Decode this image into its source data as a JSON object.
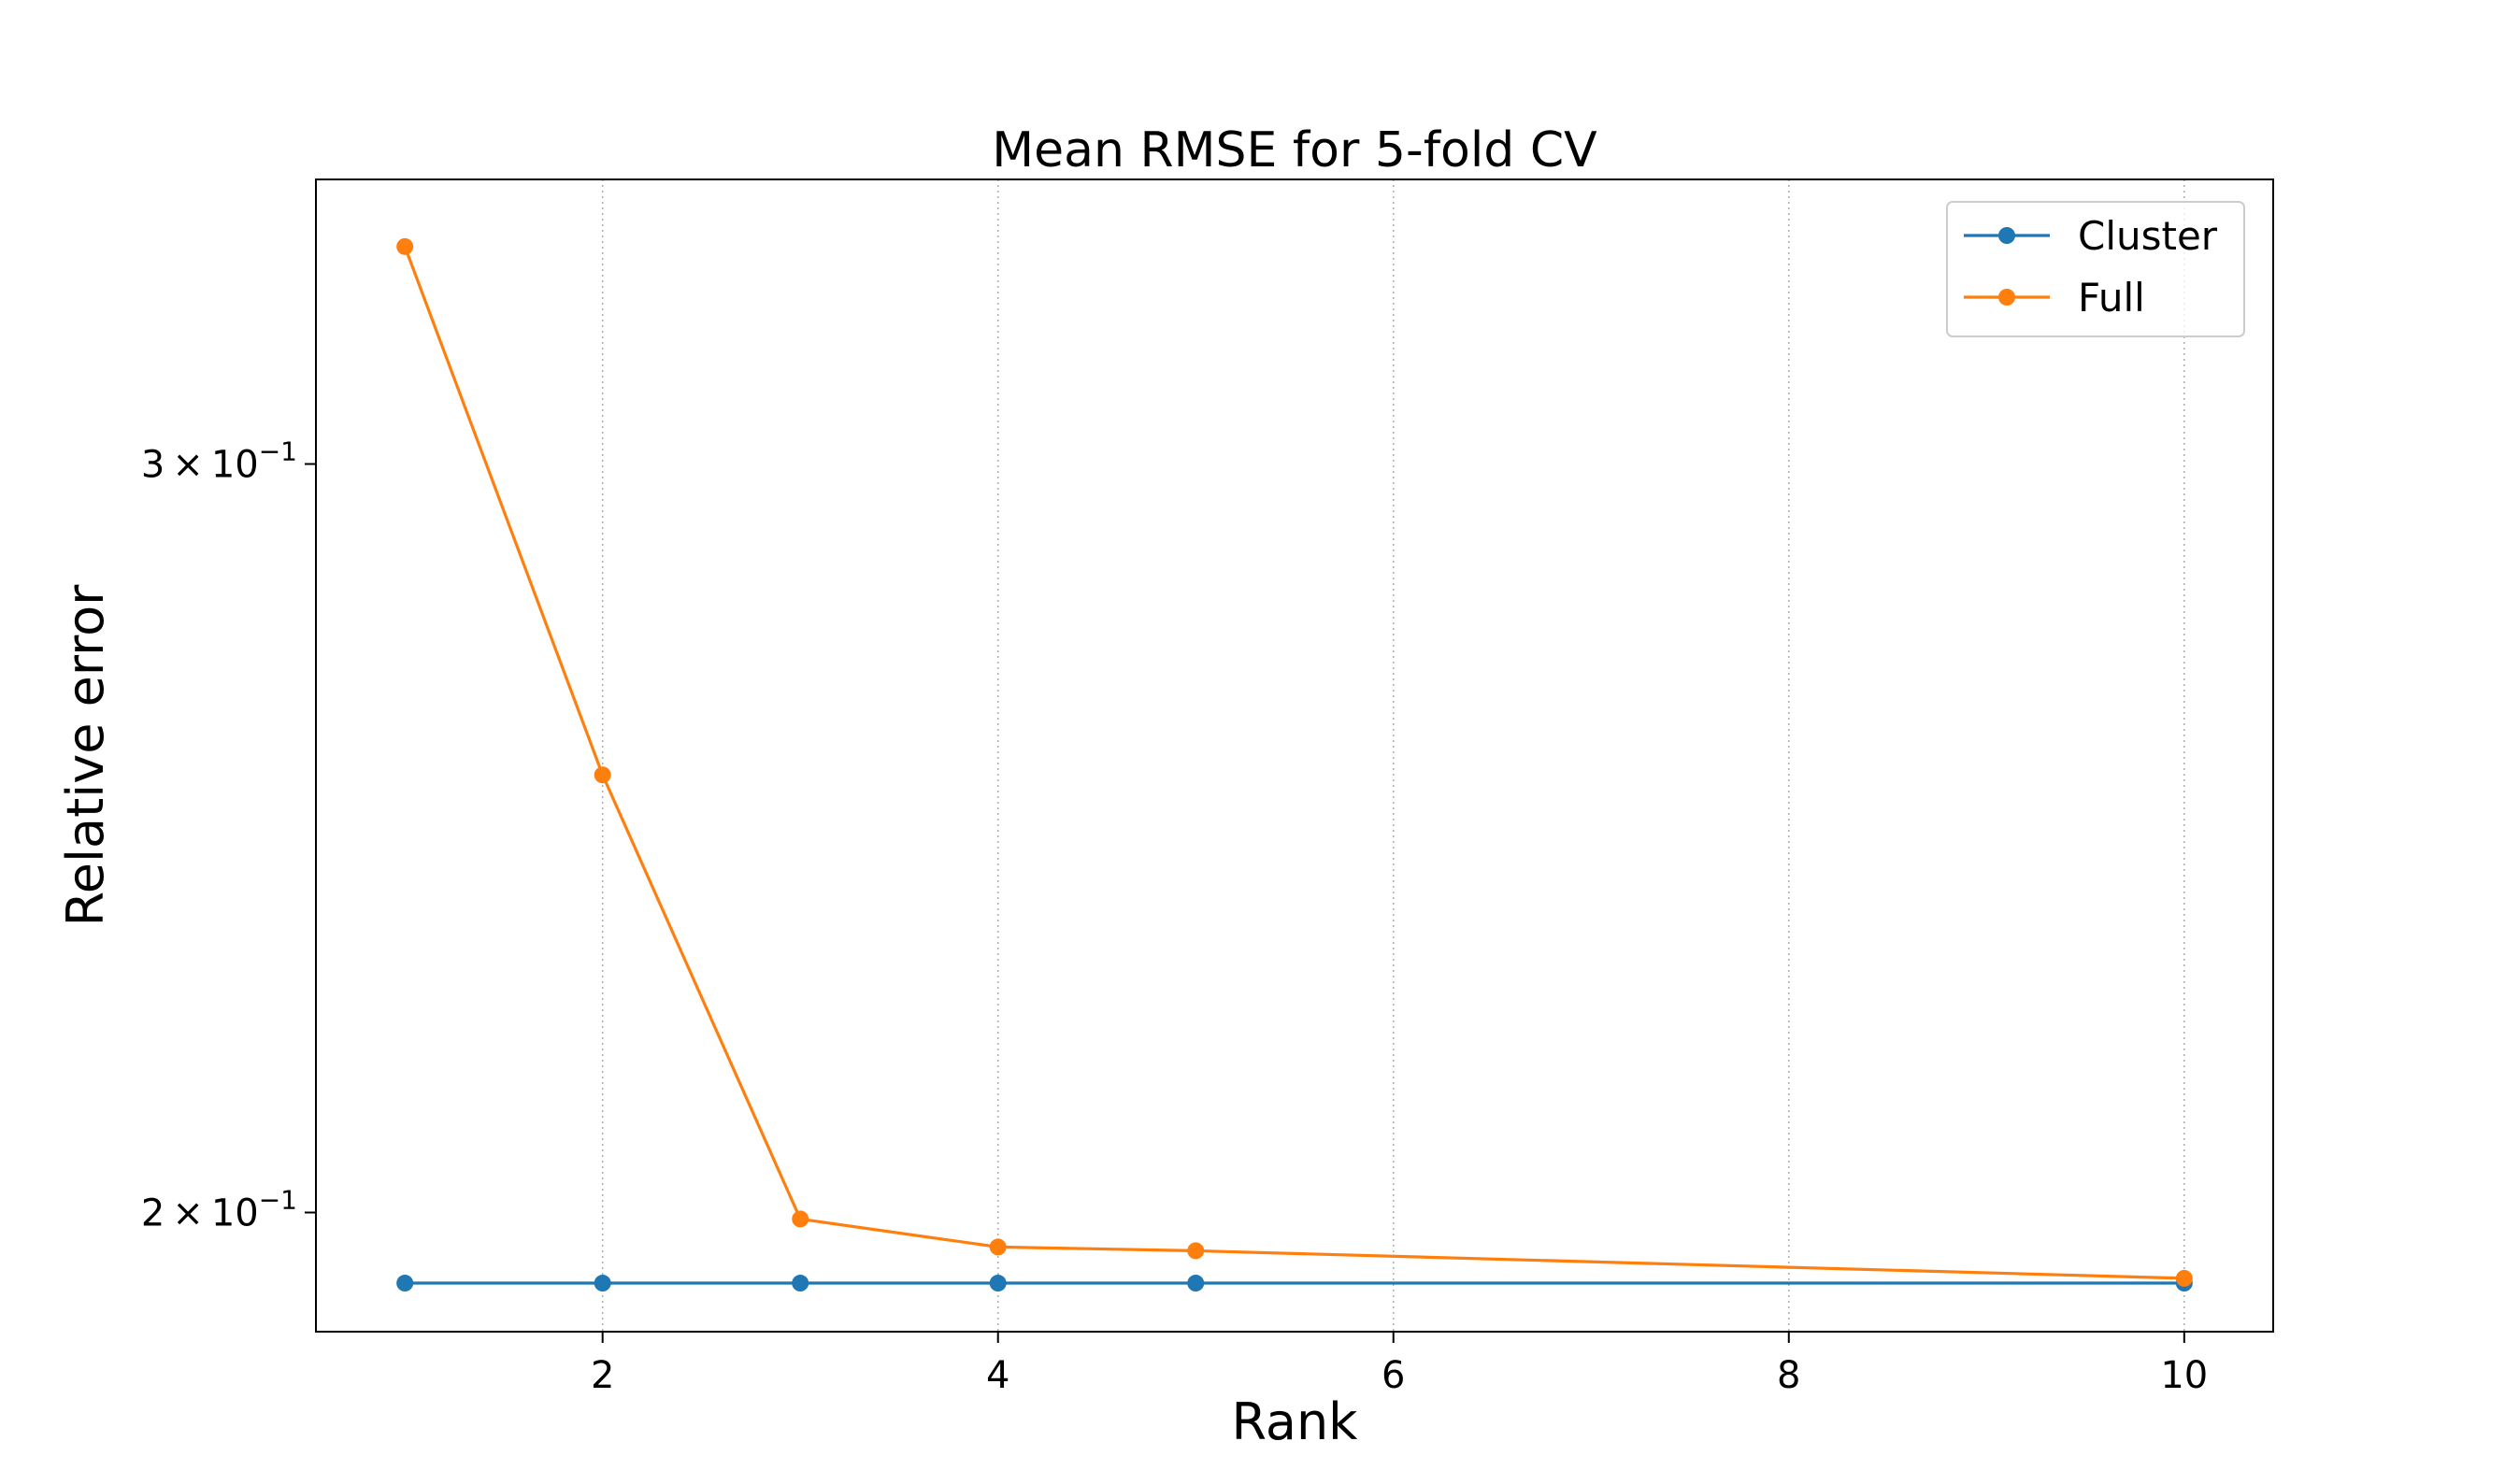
{
  "chart_data": {
    "type": "line",
    "title": "Mean RMSE for 5-fold CV",
    "xlabel": "Rank",
    "ylabel": "Relative error",
    "xlim": [
      0.55,
      10.45
    ],
    "ylim": [
      0.1875,
      0.35
    ],
    "yscale": "log",
    "xticks": [
      2,
      4,
      6,
      8,
      10
    ],
    "yticks": [
      {
        "value": 0.2,
        "mantissa": "2",
        "base": "10",
        "exp": "−1"
      },
      {
        "value": 0.3,
        "mantissa": "3",
        "base": "10",
        "exp": "−1"
      }
    ],
    "grid": "x-only, dotted",
    "legend_position": "top-right",
    "series": [
      {
        "name": "Cluster",
        "color": "#1f77b4",
        "x": [
          1,
          2,
          3,
          4,
          5,
          10
        ],
        "y": [
          0.1925,
          0.1925,
          0.1925,
          0.1925,
          0.1925,
          0.1925
        ]
      },
      {
        "name": "Full",
        "color": "#ff7f0e",
        "x": [
          1,
          2,
          3,
          4,
          5,
          10
        ],
        "y": [
          0.3375,
          0.2535,
          0.1993,
          0.1963,
          0.1959,
          0.193
        ]
      }
    ]
  }
}
